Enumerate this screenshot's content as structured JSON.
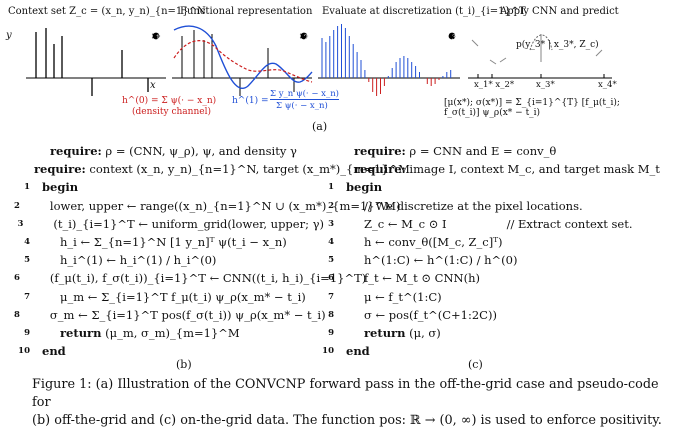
{
  "panel_a": {
    "header_1": "Context set Z_c = (x_n, y_n)_{n=1}^N",
    "header_2": "Functional representation",
    "header_3": "Evaluate at discretization (t_i)_{i=1}^T",
    "header_4": "Apply CNN and predict",
    "y_axis_label": "y",
    "x_axis_label": "x",
    "step_1": "1",
    "step_2": "2",
    "step_3": "3",
    "h0_text": "h^(0) = Σ ψ(· − x_n)",
    "h1_text": "h^(1) = Σ y_n ψ(· − x_n)",
    "h1_normalised_lhs": "h^(1) =",
    "h1_normalised_num": "Σ y_n ψ(· − x_n)",
    "h1_normalised_den": "Σ ψ(· − x_n)",
    "density_label": "(density channel)",
    "predictive_label": "p(y_3* | x_3*, Z_c)",
    "xstar_labels": [
      "x_1* x_2*",
      "x_3*",
      "x_4*"
    ],
    "formula": "[μ(x*); σ(x*)] = Σ_{i=1}^{T} [f_μ(t_i); f_σ(t_i)] ψ_ρ(x* − t_i)",
    "sub_label": "(a)"
  },
  "algo_b": {
    "lines": [
      {
        "num": "",
        "text": "require: ρ = (CNN, ψ_ρ), ψ, and density γ"
      },
      {
        "num": "",
        "text": "require: context (x_n, y_n)_{n=1}^N, target (x_m*)_{m=1}^M"
      },
      {
        "num": "1",
        "text": "begin"
      },
      {
        "num": "2",
        "text": "lower, upper ← range((x_n)_{n=1}^N ∪ (x_m*)_{m=1}^M)"
      },
      {
        "num": "3",
        "text": "(t_i)_{i=1}^T ← uniform_grid(lower, upper; γ)"
      },
      {
        "num": "4",
        "text": "h_i ← Σ_{n=1}^N [1  y_n]ᵀ ψ(t_i − x_n)"
      },
      {
        "num": "5",
        "text": "h_i^(1) ← h_i^(1) / h_i^(0)"
      },
      {
        "num": "6",
        "text": "(f_μ(t_i), f_σ(t_i))_{i=1}^T ← CNN((t_i, h_i)_{i=1}^T)"
      },
      {
        "num": "7",
        "text": "μ_m ← Σ_{i=1}^T f_μ(t_i) ψ_ρ(x_m* − t_i)"
      },
      {
        "num": "8",
        "text": "σ_m ← Σ_{i=1}^T pos(f_σ(t_i)) ψ_ρ(x_m* − t_i)"
      },
      {
        "num": "9",
        "text": "return (μ_m, σ_m)_{m=1}^M"
      },
      {
        "num": "10",
        "text": "end"
      }
    ],
    "sub_label": "(b)"
  },
  "algo_c": {
    "lines": [
      {
        "num": "",
        "text": "require: ρ = CNN and E = conv_θ"
      },
      {
        "num": "",
        "text": "require: image I, context M_c, and target mask M_t"
      },
      {
        "num": "1",
        "text": "begin"
      },
      {
        "num": "2",
        "text": "// We discretize at the pixel locations."
      },
      {
        "num": "3",
        "text": "Z_c ← M_c ⊙ I",
        "comment": "// Extract context set."
      },
      {
        "num": "4",
        "text": "h ← conv_θ([M_c, Z_c]ᵀ)"
      },
      {
        "num": "5",
        "text": "h^(1:C) ← h^(1:C) / h^(0)"
      },
      {
        "num": "6",
        "text": "f_t ← M_t ⊙ CNN(h)"
      },
      {
        "num": "7",
        "text": "μ ← f_t^(1:C)"
      },
      {
        "num": "8",
        "text": "σ ← pos(f_t^(C+1:2C))"
      },
      {
        "num": "9",
        "text": "return (μ, σ)"
      },
      {
        "num": "10",
        "text": "end"
      }
    ],
    "sub_label": "(c)"
  },
  "caption": {
    "line_1": "Figure 1: (a) Illustration of the CONVCNP forward pass in the off-the-grid case and pseudo-code for",
    "line_2": "(b) off-the-grid and (c) on-the-grid data. The function pos: ℝ → (0, ∞) is used to enforce positivity."
  }
}
